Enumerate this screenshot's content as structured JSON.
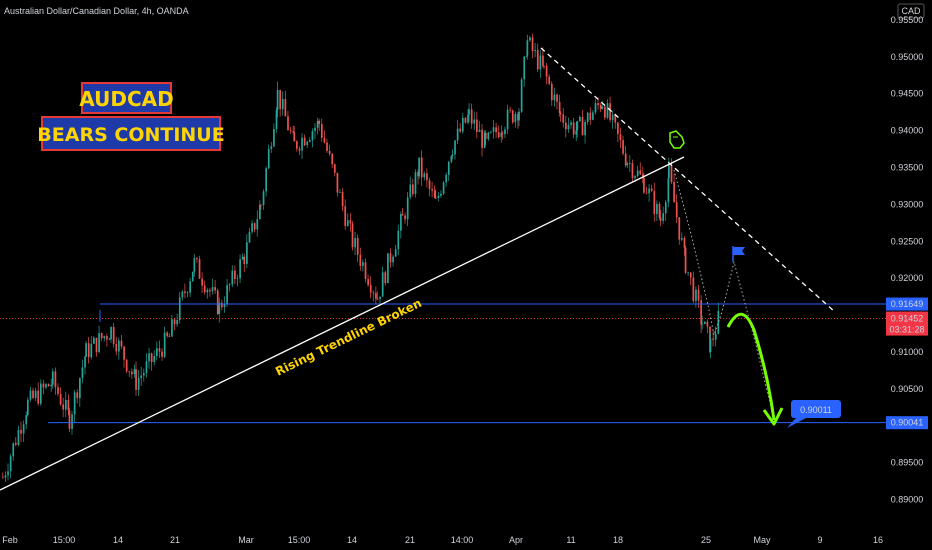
{
  "header": {
    "symbol_title": "Australian Dollar/Canadian Dollar, 4h, OANDA",
    "currency": "CAD"
  },
  "colors": {
    "background": "#000000",
    "up_candle": "#26a69a",
    "down_candle": "#ef5350",
    "level_line": "#2962ff",
    "trendline": "#ffffff",
    "projection_arrow": "#76ff03",
    "title_text": "#ffd400",
    "title_bg": "#1e3aa8",
    "title_border": "#e53935"
  },
  "chart_data": {
    "type": "candlestick",
    "title": "AUDCAD",
    "subtitle": "BEARS CONTINUE",
    "instrument": "AUDCAD",
    "timeframe": "4h",
    "source": "OANDA",
    "y_axis": {
      "side": "right",
      "range": [
        0.886,
        0.9577
      ],
      "ticks": [
        "0.95500",
        "0.95000",
        "0.94500",
        "0.94000",
        "0.93500",
        "0.93000",
        "0.92500",
        "0.92000",
        "0.91500",
        "0.91000",
        "0.90500",
        "0.90000",
        "0.89500",
        "0.89000"
      ]
    },
    "x_axis": {
      "ticks": [
        "Feb",
        "15:00",
        "14",
        "21",
        "Mar",
        "15:00",
        "14",
        "21",
        "14:00",
        "Apr",
        "11",
        "18",
        "25",
        "May",
        "9",
        "16"
      ]
    },
    "price_path": [
      [
        "2022-02-01",
        0.893
      ],
      [
        "2022-02-04",
        0.903
      ],
      [
        "2022-02-07",
        0.906
      ],
      [
        "2022-02-09",
        0.901
      ],
      [
        "2022-02-11",
        0.91
      ],
      [
        "2022-02-14",
        0.913
      ],
      [
        "2022-02-17",
        0.906
      ],
      [
        "2022-02-21",
        0.912
      ],
      [
        "2022-02-24",
        0.922
      ],
      [
        "2022-02-27",
        0.916
      ],
      [
        "2022-03-02",
        0.923
      ],
      [
        "2022-03-04",
        0.93
      ],
      [
        "2022-03-06",
        0.945
      ],
      [
        "2022-03-08",
        0.938
      ],
      [
        "2022-03-11",
        0.941
      ],
      [
        "2022-03-15",
        0.925
      ],
      [
        "2022-03-18",
        0.9175
      ],
      [
        "2022-03-21",
        0.928
      ],
      [
        "2022-03-23",
        0.935
      ],
      [
        "2022-03-25",
        0.93
      ],
      [
        "2022-03-27",
        0.938
      ],
      [
        "2022-03-29",
        0.942
      ],
      [
        "2022-03-31",
        0.938
      ],
      [
        "2022-04-02",
        0.941
      ],
      [
        "2022-04-04",
        0.943
      ],
      [
        "2022-04-05",
        0.952
      ],
      [
        "2022-04-07",
        0.948
      ],
      [
        "2022-04-09",
        0.942
      ],
      [
        "2022-04-11",
        0.94
      ],
      [
        "2022-04-14",
        0.944
      ],
      [
        "2022-04-17",
        0.936
      ],
      [
        "2022-04-19",
        0.933
      ],
      [
        "2022-04-21",
        0.928
      ],
      [
        "2022-04-22",
        0.934
      ],
      [
        "2022-04-24",
        0.922
      ],
      [
        "2022-04-26",
        0.914
      ],
      [
        "2022-04-27",
        0.911
      ],
      [
        "2022-04-28",
        0.9145
      ]
    ],
    "levels": [
      {
        "price": 0.91649,
        "label": "0.91649",
        "color": "#2962ff"
      },
      {
        "price": 0.90041,
        "label": "0.90041",
        "color": "#2962ff"
      }
    ],
    "current_price": {
      "label": "0.91452",
      "countdown": "03:31:28",
      "color": "#f23645"
    },
    "target_callout": {
      "label": "0.90011"
    },
    "annotations": [
      {
        "text": "Rising Trendline Broken",
        "color": "#ffd400"
      }
    ],
    "lines": [
      {
        "kind": "rising-trendline",
        "style": "solid",
        "color": "#ffffff"
      },
      {
        "kind": "falling-trendline",
        "style": "dashed",
        "color": "#ffffff"
      }
    ],
    "legend": "none",
    "grid": false
  }
}
